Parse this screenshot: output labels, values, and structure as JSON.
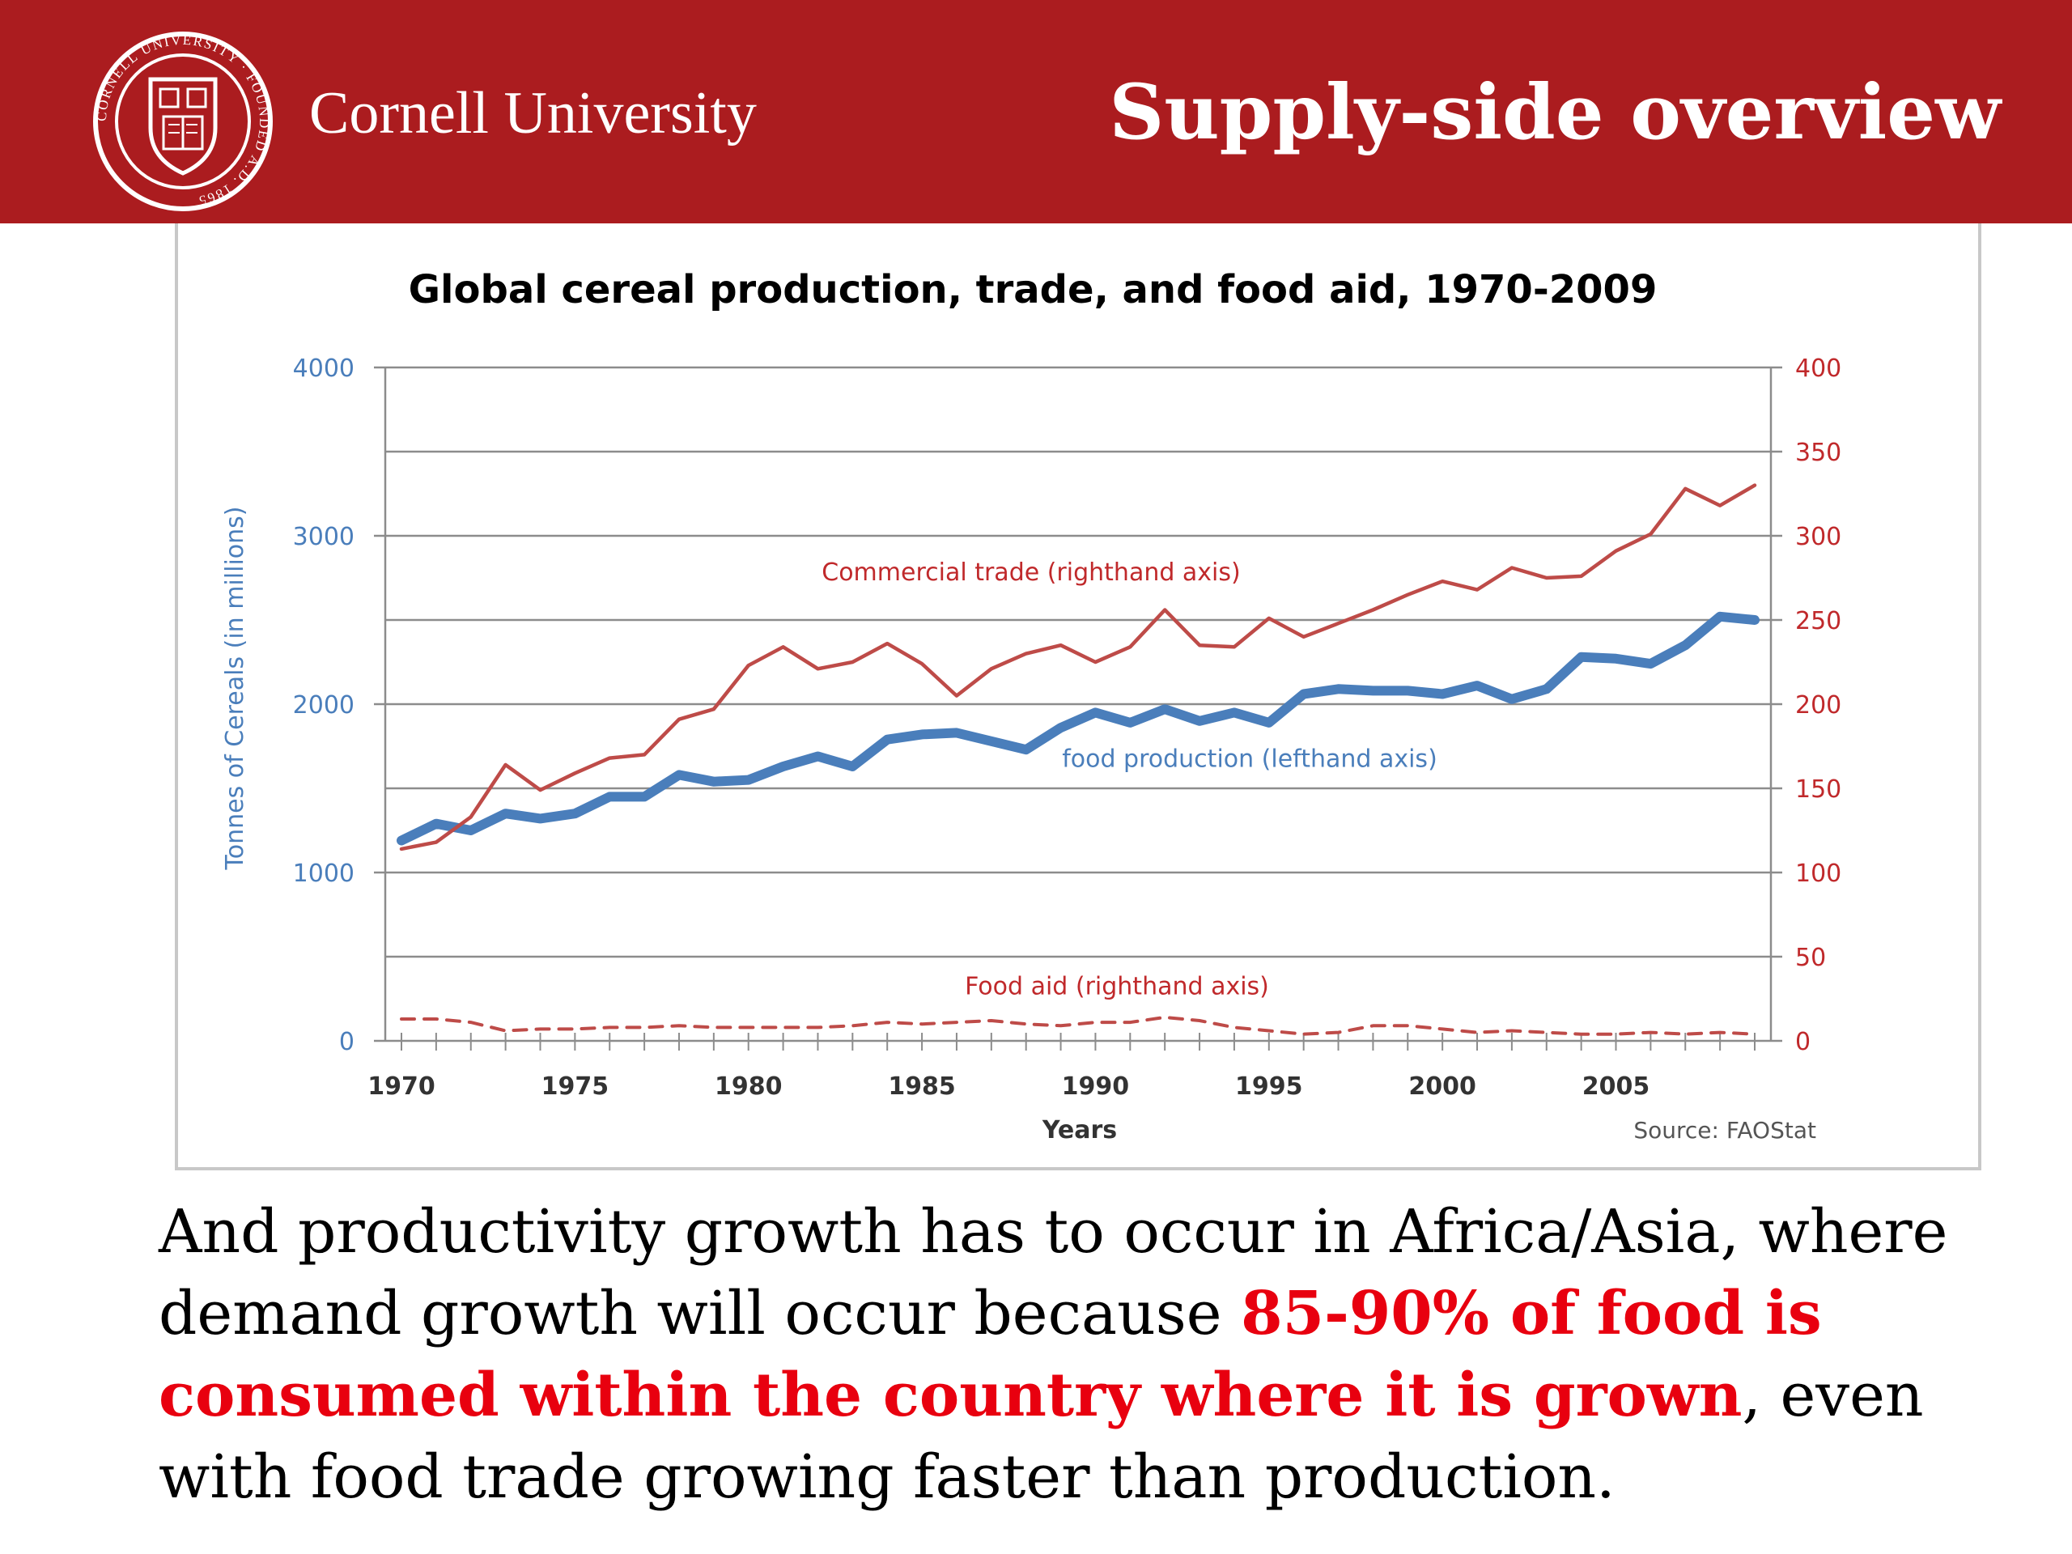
{
  "header": {
    "university_name": "Cornell University",
    "slide_title": "Supply-side overview",
    "seal_text": "CORNELL UNIVERSITY · FOUNDED A.D. 1865"
  },
  "colors": {
    "brand_red": "#ab1c1f",
    "production_blue": "#4a7ebb",
    "trade_red": "#be4b48",
    "highlight_red": "#e8000f"
  },
  "chart_data": {
    "type": "line",
    "title": "Global cereal production, trade, and food aid, 1970-2009",
    "xlabel": "Years",
    "ylabel_left": "Tonnes of Cereals (in millions)",
    "ylabel_right": "",
    "source": "Source: FAOStat",
    "xlim": [
      1970,
      2009
    ],
    "x_ticks": [
      1970,
      1975,
      1980,
      1985,
      1990,
      1995,
      2000,
      2005
    ],
    "ylim_left": [
      0,
      4000
    ],
    "y_ticks_left": [
      0,
      1000,
      2000,
      3000,
      4000
    ],
    "ylim_right": [
      0,
      400
    ],
    "y_ticks_right": [
      0,
      50,
      100,
      150,
      200,
      250,
      300,
      350,
      400
    ],
    "grid": true,
    "years": [
      1970,
      1971,
      1972,
      1973,
      1974,
      1975,
      1976,
      1977,
      1978,
      1979,
      1980,
      1981,
      1982,
      1983,
      1984,
      1985,
      1986,
      1987,
      1988,
      1989,
      1990,
      1991,
      1992,
      1993,
      1994,
      1995,
      1996,
      1997,
      1998,
      1999,
      2000,
      2001,
      2002,
      2003,
      2004,
      2005,
      2006,
      2007,
      2008,
      2009
    ],
    "series": [
      {
        "name": "food production (lefthand axis)",
        "axis": "left",
        "color": "#4a7ebb",
        "style": "solid-thick",
        "values": [
          1190,
          1290,
          1250,
          1350,
          1320,
          1350,
          1450,
          1450,
          1580,
          1540,
          1550,
          1630,
          1690,
          1630,
          1790,
          1820,
          1830,
          1780,
          1730,
          1860,
          1950,
          1890,
          1970,
          1900,
          1950,
          1890,
          2060,
          2090,
          2080,
          2080,
          2060,
          2110,
          2030,
          2090,
          2280,
          2270,
          2240,
          2350,
          2520,
          2500
        ]
      },
      {
        "name": "Commercial trade (righthand axis)",
        "axis": "right",
        "color": "#be4b48",
        "style": "solid",
        "values": [
          114,
          118,
          133,
          164,
          149,
          159,
          168,
          170,
          191,
          197,
          223,
          234,
          221,
          225,
          236,
          224,
          205,
          221,
          230,
          235,
          225,
          234,
          256,
          235,
          234,
          251,
          240,
          248,
          256,
          265,
          273,
          268,
          281,
          275,
          276,
          291,
          301,
          328,
          318,
          330
        ]
      },
      {
        "name": "Food aid (righthand axis)",
        "axis": "right",
        "color": "#be4b48",
        "style": "dashed",
        "values": [
          13,
          13,
          11,
          6,
          7,
          7,
          8,
          8,
          9,
          8,
          8,
          8,
          8,
          9,
          11,
          10,
          11,
          12,
          10,
          9,
          11,
          11,
          14,
          12,
          8,
          6,
          4,
          5,
          9,
          9,
          7,
          5,
          6,
          5,
          4,
          4,
          5,
          4,
          5,
          4
        ]
      }
    ]
  },
  "body": {
    "text_before": "And productivity growth has to occur in Africa/Asia, where demand growth will occur because ",
    "text_highlight": "85-90% of food is consumed within the country where it is grown",
    "text_after": ", even with food trade growing faster than production."
  }
}
